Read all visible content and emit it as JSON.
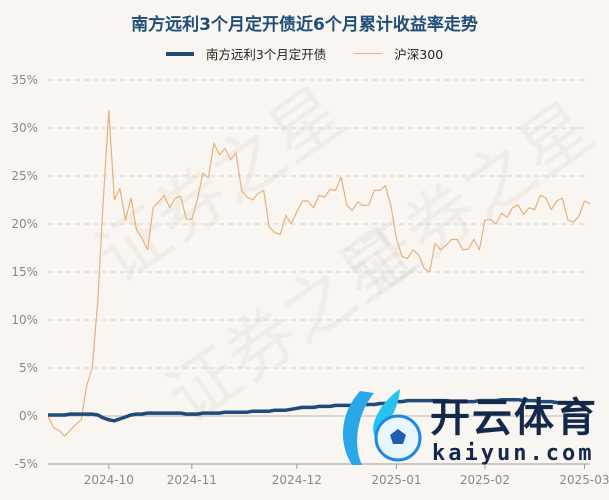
{
  "title": "南方远利3个月定开债近6个月累计收益率走势",
  "watermark": "证券之星",
  "logo": {
    "cn": "开云体育",
    "en": "kaiyun.com"
  },
  "colors": {
    "fund": "#1f4a7a",
    "hs300": "#e8b07c",
    "title": "#1f4e79",
    "background": "#f9f6f1"
  },
  "chart_data": {
    "type": "line",
    "title": "南方远利3个月定开债近6个月累计收益率走势",
    "ylim": [
      -5,
      35
    ],
    "yticks": [
      -5,
      0,
      5,
      10,
      15,
      20,
      25,
      30,
      35
    ],
    "ytick_labels": [
      "-5%",
      "0%",
      "5%",
      "10%",
      "15%",
      "20%",
      "25%",
      "30%",
      "35%"
    ],
    "xtick_labels": [
      "2024-10",
      "2024-11",
      "2024-12",
      "2025-01",
      "2025-02",
      "2025-03"
    ],
    "grid": "horizontal dashed",
    "legend_position": "top",
    "x": [
      "2024-09-09",
      "2024-09-11",
      "2024-09-13",
      "2024-09-18",
      "2024-09-19",
      "2024-09-23",
      "2024-09-24",
      "2024-09-25",
      "2024-09-26",
      "2024-09-27",
      "2024-09-30",
      "2024-10-08",
      "2024-10-09",
      "2024-10-10",
      "2024-10-11",
      "2024-10-14",
      "2024-10-15",
      "2024-10-16",
      "2024-10-17",
      "2024-10-18",
      "2024-10-21",
      "2024-10-23",
      "2024-10-24",
      "2024-10-25",
      "2024-10-28",
      "2024-10-30",
      "2024-11-01",
      "2024-11-04",
      "2024-11-05",
      "2024-11-06",
      "2024-11-07",
      "2024-11-08",
      "2024-11-11",
      "2024-11-12",
      "2024-11-13",
      "2024-11-15",
      "2024-11-18",
      "2024-11-19",
      "2024-11-20",
      "2024-11-22",
      "2024-11-25",
      "2024-11-26",
      "2024-11-27",
      "2024-11-28",
      "2024-11-29",
      "2024-12-02",
      "2024-12-04",
      "2024-12-05",
      "2024-12-06",
      "2024-12-09",
      "2024-12-10",
      "2024-12-11",
      "2024-12-12",
      "2024-12-13",
      "2024-12-16",
      "2024-12-17",
      "2024-12-19",
      "2024-12-20",
      "2024-12-23",
      "2024-12-24",
      "2024-12-27",
      "2024-12-30",
      "2024-12-31",
      "2025-01-02",
      "2025-01-03",
      "2025-01-06",
      "2025-01-07",
      "2025-01-09",
      "2025-01-10",
      "2025-01-13",
      "2025-01-14",
      "2025-01-15",
      "2025-01-17",
      "2025-01-20",
      "2025-01-21",
      "2025-01-22",
      "2025-01-23",
      "2025-01-24",
      "2025-01-27",
      "2025-02-05",
      "2025-02-06",
      "2025-02-07",
      "2025-02-10",
      "2025-02-11",
      "2025-02-12",
      "2025-02-13",
      "2025-02-14",
      "2025-02-17",
      "2025-02-18",
      "2025-02-19",
      "2025-02-20",
      "2025-02-21",
      "2025-02-24",
      "2025-02-25",
      "2025-02-26",
      "2025-02-27",
      "2025-02-28",
      "2025-03-03",
      "2025-03-04"
    ],
    "series": [
      {
        "name": "南方远利3个月定开债",
        "values": [
          0.1,
          0.1,
          0.1,
          0.1,
          0.2,
          0.2,
          0.2,
          0.2,
          0.2,
          0.1,
          -0.2,
          -0.4,
          -0.5,
          -0.3,
          -0.1,
          0.1,
          0.2,
          0.2,
          0.3,
          0.3,
          0.3,
          0.3,
          0.3,
          0.3,
          0.3,
          0.2,
          0.2,
          0.2,
          0.3,
          0.3,
          0.3,
          0.3,
          0.4,
          0.4,
          0.4,
          0.4,
          0.4,
          0.5,
          0.5,
          0.5,
          0.5,
          0.6,
          0.6,
          0.6,
          0.7,
          0.8,
          0.9,
          0.9,
          0.9,
          1.0,
          1.0,
          1.0,
          1.1,
          1.1,
          1.1,
          1.1,
          1.2,
          1.2,
          1.2,
          1.2,
          1.3,
          1.3,
          1.4,
          1.5,
          1.5,
          1.6,
          1.6,
          1.6,
          1.6,
          1.6,
          1.6,
          1.6,
          1.6,
          1.5,
          1.5,
          1.5,
          1.5,
          1.5,
          1.6,
          1.6,
          1.6,
          1.6,
          1.7,
          1.7,
          1.7,
          1.7,
          1.6,
          1.6,
          1.6,
          1.5,
          1.5,
          1.5,
          1.4,
          1.4,
          1.4,
          1.3,
          1.3,
          1.3,
          1.3
        ]
      },
      {
        "name": "沪深300",
        "values": [
          0,
          -1.2,
          -1.5,
          -2.1,
          -1.5,
          -0.9,
          -0.4,
          3.2,
          5.0,
          12.0,
          22.5,
          31.8,
          22.5,
          23.7,
          20.4,
          22.7,
          19.4,
          18.5,
          17.3,
          21.7,
          22.3,
          23.0,
          21.7,
          22.7,
          22.9,
          20.5,
          20.5,
          22.5,
          25.3,
          24.8,
          28.4,
          27.2,
          27.9,
          26.7,
          27.4,
          23.5,
          22.8,
          22.5,
          23.2,
          23.5,
          19.7,
          19.1,
          18.9,
          20.9,
          20.0,
          21.3,
          22.4,
          22.4,
          21.7,
          23.0,
          22.8,
          23.6,
          23.5,
          24.9,
          22.0,
          21.4,
          22.3,
          21.9,
          22.0,
          23.5,
          23.5,
          24.0,
          21.9,
          18.5,
          16.6,
          16.4,
          17.3,
          16.8,
          15.4,
          15.0,
          18.0,
          17.3,
          17.8,
          18.4,
          18.4,
          17.3,
          17.4,
          18.4,
          17.3,
          20.4,
          20.5,
          20.0,
          21.1,
          20.7,
          21.7,
          22.0,
          21.0,
          21.7,
          21.5,
          23.0,
          22.7,
          21.5,
          22.4,
          22.7,
          20.4,
          20.2,
          20.8,
          22.4,
          22.1
        ]
      }
    ]
  }
}
